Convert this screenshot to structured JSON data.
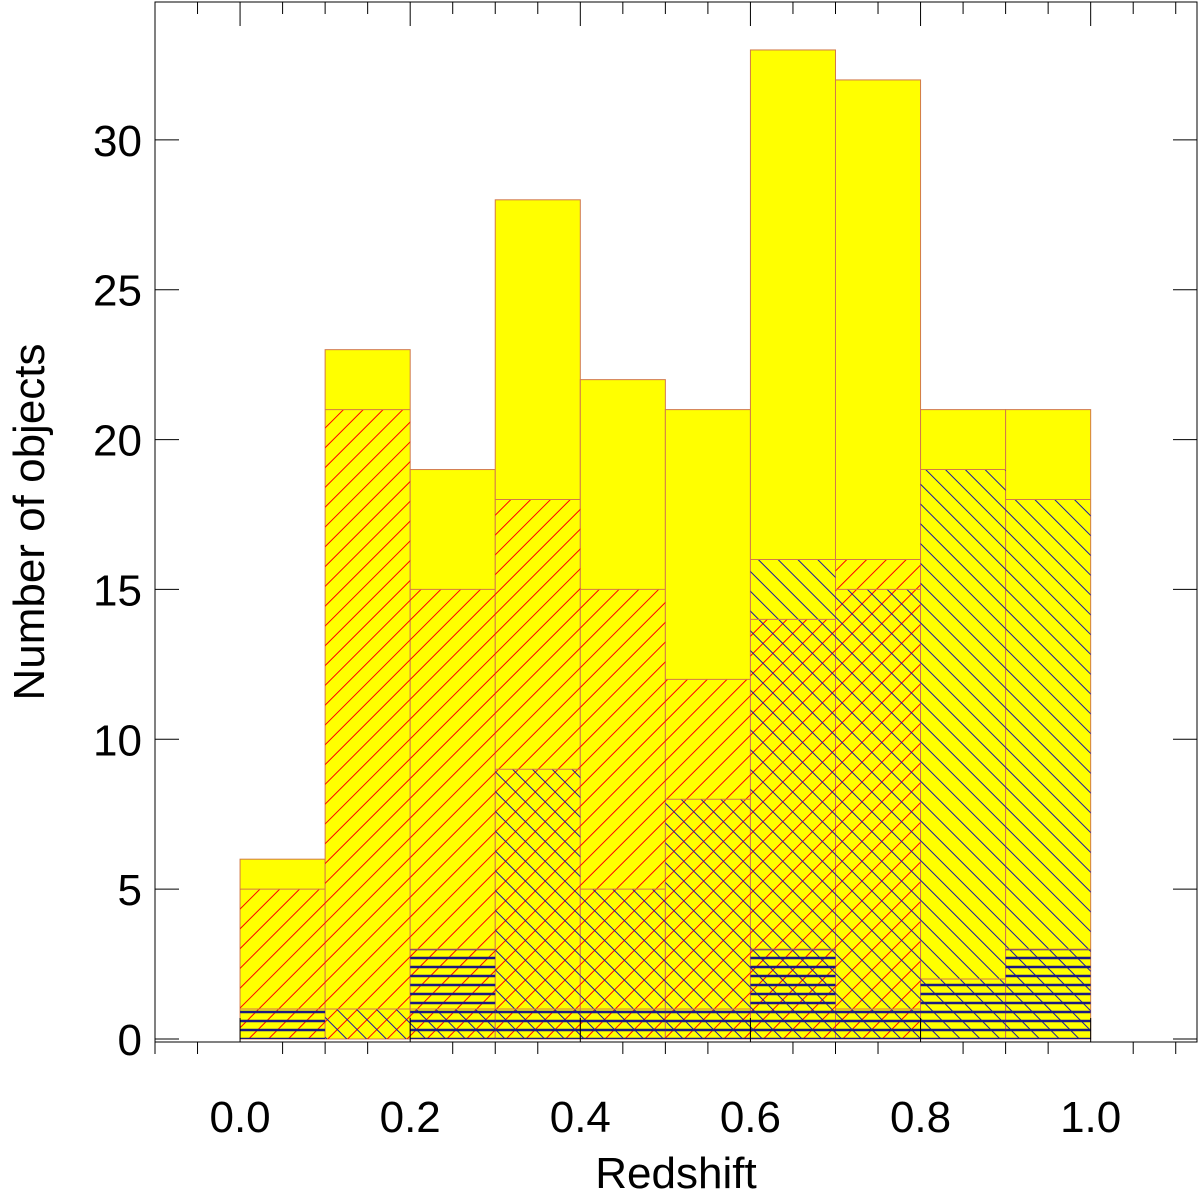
{
  "chart_data": {
    "type": "bar",
    "title": "",
    "xlabel": "Redshift",
    "ylabel": "Number of objects",
    "xlim": [
      -0.1,
      1.125
    ],
    "ylim": [
      -0.1,
      34.6
    ],
    "x_ticks": [
      "0.0",
      "0.2",
      "0.4",
      "0.6",
      "0.8",
      "1.0"
    ],
    "x_tick_values": [
      0.0,
      0.2,
      0.4,
      0.6,
      0.8,
      1.0
    ],
    "x_minor_step": 0.05,
    "y_ticks": [
      "0",
      "5",
      "10",
      "15",
      "20",
      "25",
      "30"
    ],
    "y_tick_values": [
      0,
      5,
      10,
      15,
      20,
      25,
      30
    ],
    "bin_edges": [
      0.0,
      0.1,
      0.2,
      0.3,
      0.4,
      0.5,
      0.6,
      0.7,
      0.8,
      0.9,
      1.0
    ],
    "grid": false,
    "legend": "none",
    "series": [
      {
        "fill": "solid",
        "color": "#ffff00",
        "edge": "#d27a4a",
        "values": [
          6,
          23,
          19,
          28,
          22,
          21,
          33,
          32,
          21,
          21
        ]
      },
      {
        "fill": "hatch-up",
        "color": "#ff0000",
        "values": [
          5,
          21,
          15,
          18,
          15,
          12,
          14,
          16,
          0,
          0
        ]
      },
      {
        "fill": "hatch-down",
        "color": "#1a1aa0",
        "values": [
          0,
          1,
          1,
          9,
          5,
          8,
          16,
          15,
          19,
          18
        ]
      },
      {
        "fill": "hatch-horizontal",
        "color": "#1a1a80",
        "values": [
          1,
          0,
          3,
          1,
          1,
          1,
          3,
          1,
          2,
          3
        ]
      }
    ]
  }
}
